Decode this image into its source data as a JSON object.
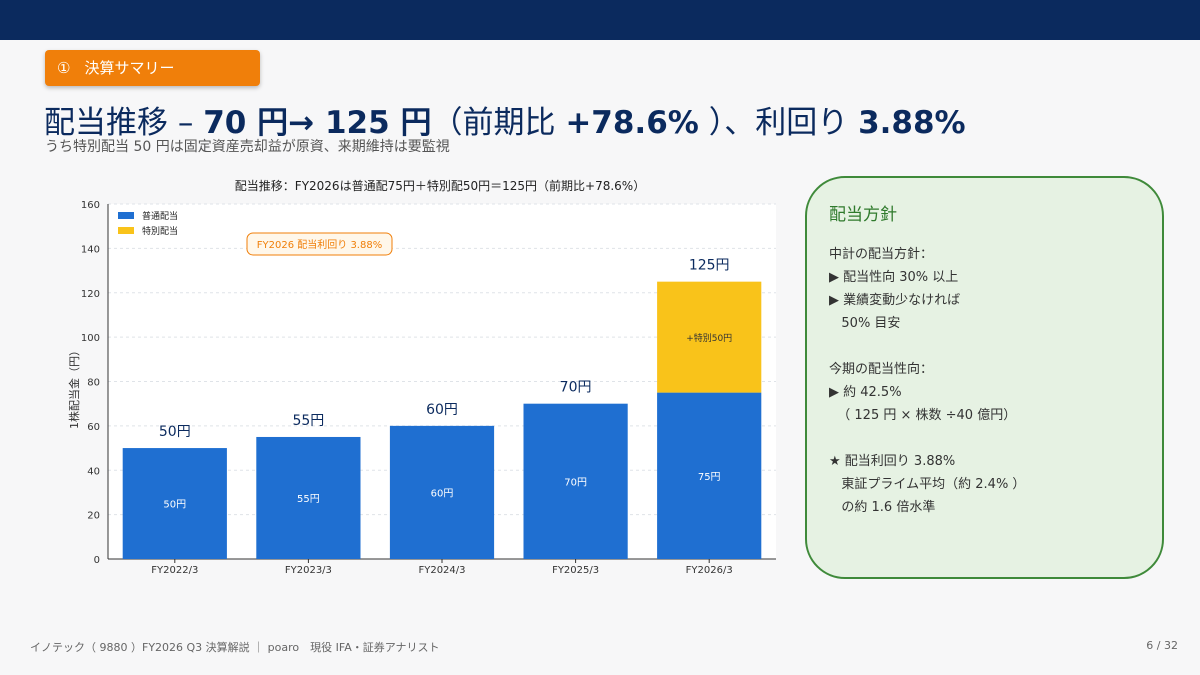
{
  "section_tag": {
    "number": "①",
    "label": "決算サマリー"
  },
  "headline": {
    "part1": "配当推移 – ",
    "from": "70 円",
    "arrow": "→ ",
    "to": "125 円",
    "paren_open": "（前期比 ",
    "change": "+78.6%",
    "paren_close": " ）、利回り ",
    "yield": "3.88%"
  },
  "subtitle": "うち特別配当 50 円は固定資産売却益が原資、来期維持は要監視",
  "chart_data": {
    "type": "bar",
    "stacked": true,
    "title": "配当推移：FY2026は普通配75円＋特別配50円＝125円（前期比+78.6%）",
    "xlabel": "",
    "ylabel": "1株配当金（円）",
    "ylim": [
      0,
      160
    ],
    "yticks": [
      0,
      20,
      40,
      60,
      80,
      100,
      120,
      140,
      160
    ],
    "grid": true,
    "legend_position": "top-left",
    "categories": [
      "FY2022/3",
      "FY2023/3",
      "FY2024/3",
      "FY2025/3",
      "FY2026/3"
    ],
    "series": [
      {
        "name": "普通配当",
        "color": "#1f6fd1",
        "values": [
          50,
          55,
          60,
          70,
          75
        ],
        "labels": [
          "50円",
          "55円",
          "60円",
          "70円",
          "75円"
        ]
      },
      {
        "name": "特別配当",
        "color": "#f9c31a",
        "values": [
          0,
          0,
          0,
          0,
          50
        ],
        "labels": [
          "",
          "",
          "",
          "",
          "+特別50円"
        ]
      }
    ],
    "totals": [
      "50円",
      "55円",
      "60円",
      "70円",
      "125円"
    ],
    "annotation": "FY2026 配当利回り 3.88%"
  },
  "policy": {
    "title": "配当方針",
    "lines": [
      "中計の配当方針：",
      "▶ 配当性向 30% 以上",
      "▶ 業績変動少なければ",
      "   50% 目安",
      "",
      "今期の配当性向：",
      "▶ 約 42.5%",
      "  （ 125 円 × 株数 ÷40 億円）",
      "",
      "★ 配当利回り 3.88%",
      "   東証プライム平均（約 2.4% ）",
      "   の約 1.6 倍水準"
    ]
  },
  "footer": {
    "left": "イノテック（ 9880 ）FY2026 Q3 決算解説 ｜ poaro　現役 IFA・証券アナリスト",
    "page": "6 / 32"
  }
}
